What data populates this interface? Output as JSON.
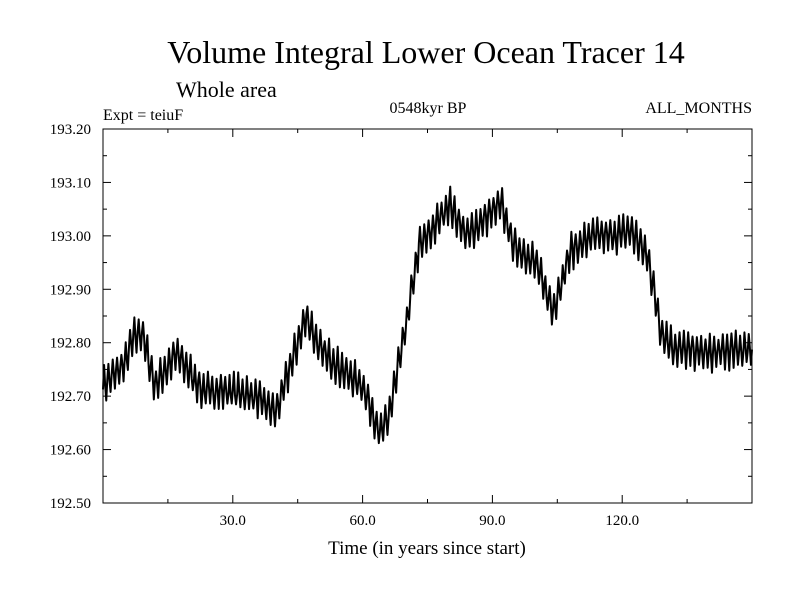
{
  "chart_data": {
    "type": "line",
    "title": "Volume Integral Lower Ocean Tracer 14",
    "subtitle": "Whole area",
    "expt_label": "Expt = teiuF",
    "period_label": "0548kyr BP",
    "months_label": "ALL_MONTHS",
    "xlabel": "Time (in years since start)",
    "ylabel": "",
    "xlim": [
      0,
      150
    ],
    "ylim": [
      192.5,
      193.2
    ],
    "x_ticks": [
      30,
      60,
      90,
      120
    ],
    "x_tick_labels": [
      "30.0",
      "60.0",
      "90.0",
      "120.0"
    ],
    "y_ticks": [
      192.5,
      192.6,
      192.7,
      192.8,
      192.9,
      193.0,
      193.1,
      193.2
    ],
    "y_tick_labels": [
      "192.50",
      "192.60",
      "192.70",
      "192.80",
      "192.90",
      "193.00",
      "193.10",
      "193.20"
    ],
    "series": [
      {
        "name": "tracer14",
        "color": "#000000",
        "oscillation_amplitude": 0.03,
        "samples_per_year": 1,
        "trend_x": [
          0,
          5,
          7,
          9,
          12,
          17,
          23,
          30,
          35,
          40,
          45,
          47,
          50,
          55,
          60,
          64,
          66,
          70,
          73,
          76,
          80,
          84,
          88,
          92,
          95,
          100,
          104,
          108,
          113,
          118,
          122,
          126,
          129,
          132,
          140,
          150
        ],
        "trend_y": [
          192.72,
          192.76,
          192.81,
          192.82,
          192.72,
          192.78,
          192.71,
          192.71,
          192.7,
          192.67,
          192.8,
          192.85,
          192.79,
          192.75,
          192.72,
          192.63,
          192.66,
          192.83,
          192.98,
          193.01,
          193.06,
          193.0,
          193.03,
          193.06,
          192.98,
          192.95,
          192.86,
          192.97,
          193.0,
          193.0,
          193.01,
          192.96,
          192.82,
          192.79,
          192.78,
          192.79
        ]
      }
    ]
  }
}
